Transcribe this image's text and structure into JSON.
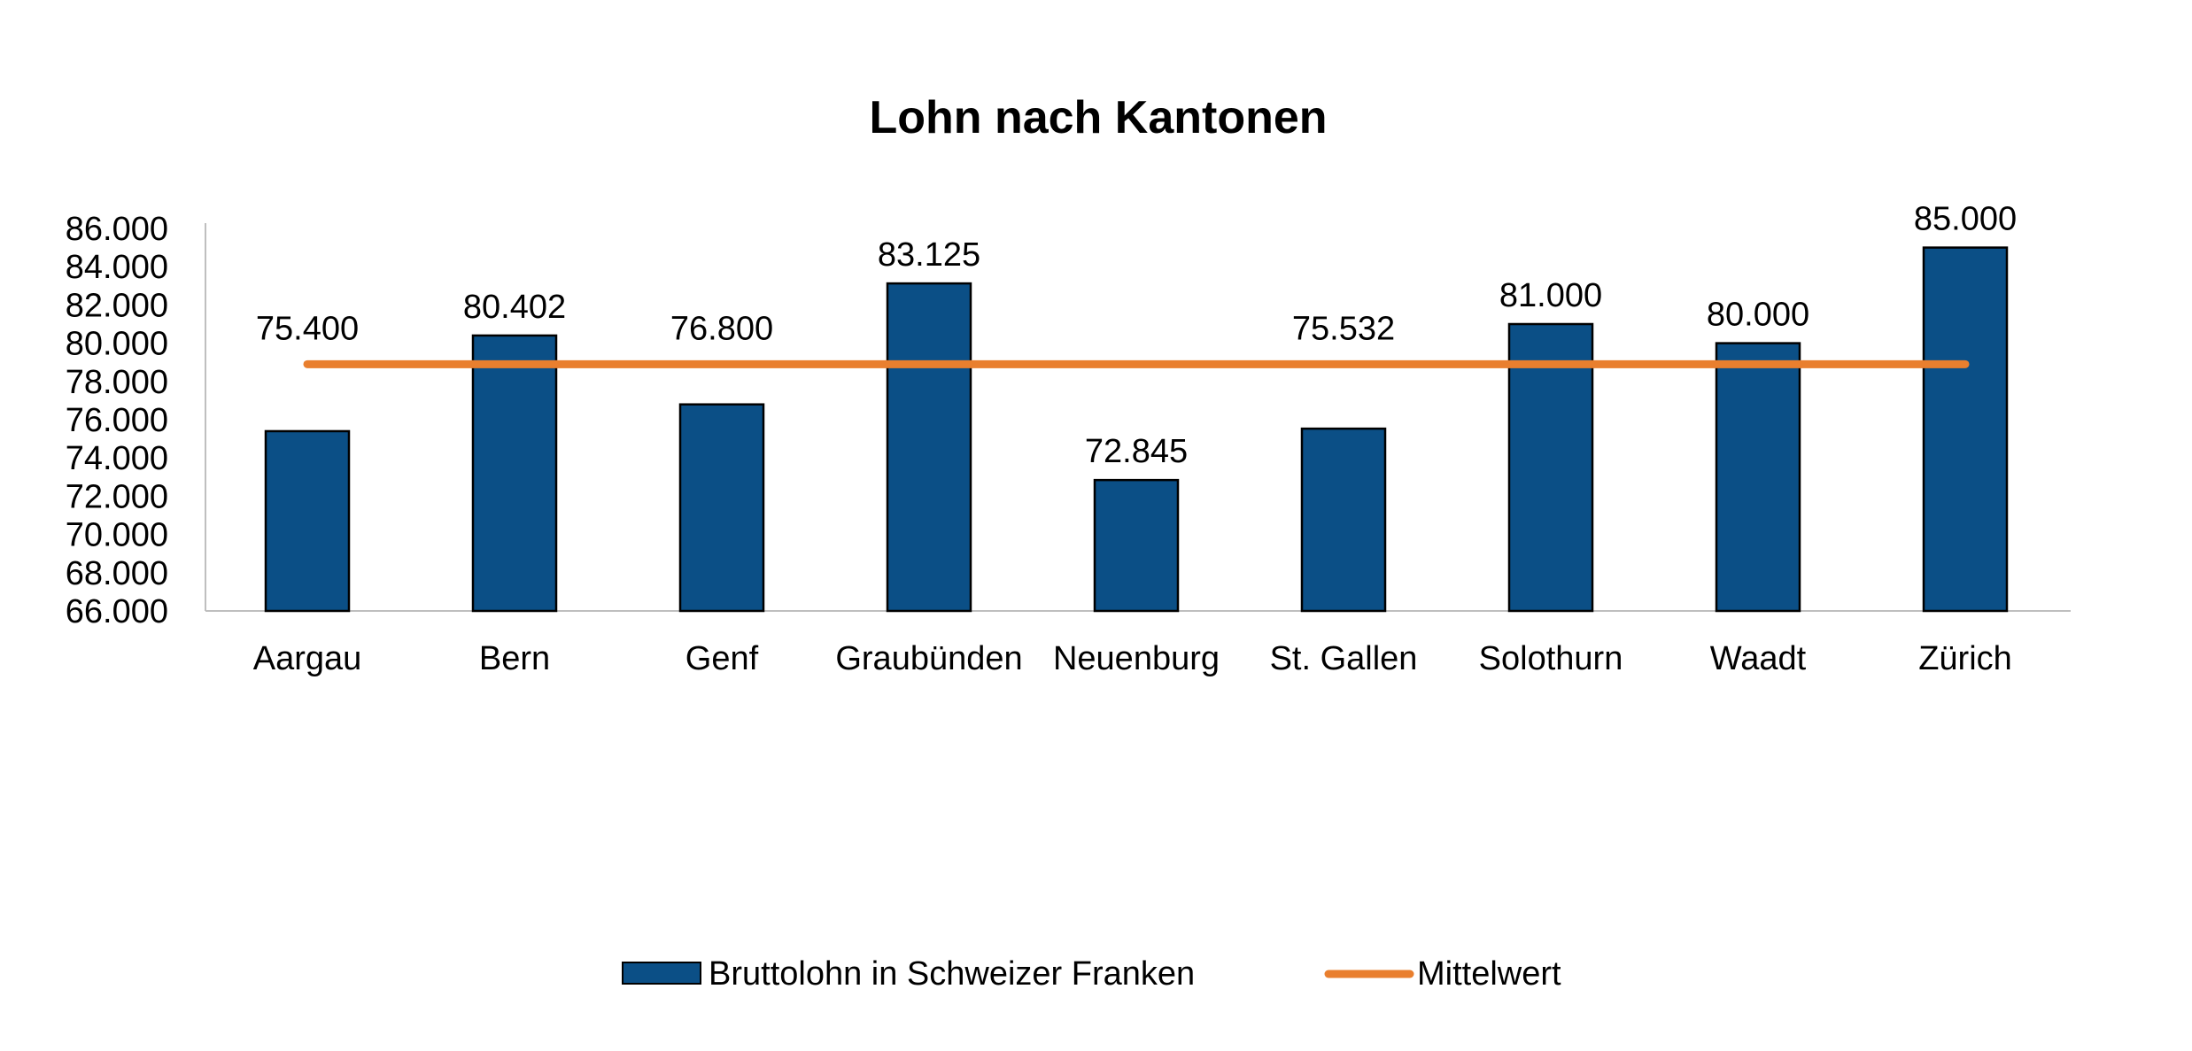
{
  "chart_data": {
    "type": "bar",
    "title": "Lohn nach Kantonen",
    "xlabel": "",
    "ylabel": "",
    "categories": [
      "Aargau",
      "Bern",
      "Genf",
      "Graubünden",
      "Neuenburg",
      "St. Gallen",
      "Solothurn",
      "Waadt",
      "Zürich"
    ],
    "series": [
      {
        "name": "Bruttolohn in Schweizer Franken",
        "type": "bar",
        "color": "#0b4f86",
        "values": [
          75400,
          80402,
          76800,
          83125,
          72845,
          75532,
          81000,
          80000,
          85000
        ],
        "labels": [
          "75.400",
          "80.402",
          "76.800",
          "83.125",
          "72.845",
          "75.532",
          "81.000",
          "80.000",
          "85.000"
        ]
      },
      {
        "name": "Mittelwert",
        "type": "line",
        "color": "#e97f2e",
        "values": [
          78900,
          78900,
          78900,
          78900,
          78900,
          78900,
          78900,
          78900,
          78900
        ]
      }
    ],
    "ylim": [
      66000,
      86000
    ],
    "yticks": [
      {
        "value": 66000,
        "label": "66.000"
      },
      {
        "value": 68000,
        "label": "68.000"
      },
      {
        "value": 70000,
        "label": "70.000"
      },
      {
        "value": 72000,
        "label": "72.000"
      },
      {
        "value": 74000,
        "label": "74.000"
      },
      {
        "value": 76000,
        "label": "76.000"
      },
      {
        "value": 78000,
        "label": "78.000"
      },
      {
        "value": 80000,
        "label": "80.000"
      },
      {
        "value": 82000,
        "label": "82.000"
      },
      {
        "value": 84000,
        "label": "84.000"
      },
      {
        "value": 86000,
        "label": "86.000"
      }
    ],
    "grid": false,
    "legend_position": "bottom"
  }
}
